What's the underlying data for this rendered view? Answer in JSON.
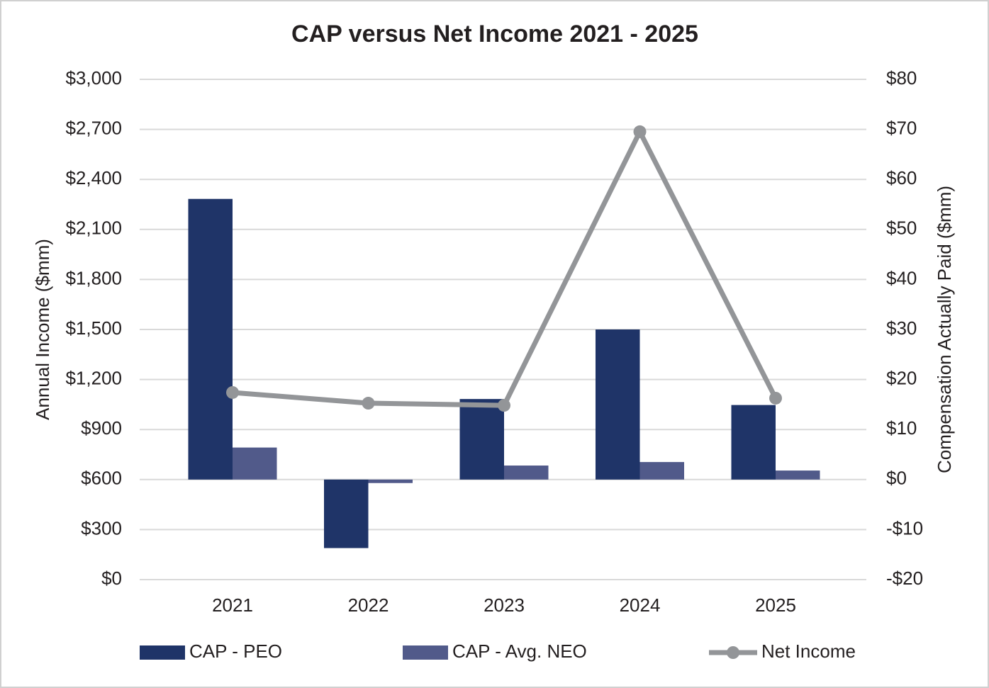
{
  "chart_data": {
    "type": "bar-line",
    "title": "CAP versus Net Income 2021 - 2025",
    "y_label": "Annual  Income ($mm)",
    "y2_label": "Compensation Actually Paid ($mm)",
    "categories": [
      "2021",
      "2022",
      "2023",
      "2024",
      "2025"
    ],
    "series": [
      {
        "name": "CAP - PEO",
        "type": "bar",
        "axis": "y2",
        "color": "#1f3468",
        "values": [
          56.1,
          -13.7,
          16.1,
          30.0,
          14.9
        ]
      },
      {
        "name": "CAP - Avg. NEO",
        "type": "bar",
        "axis": "y2",
        "color": "#515a8a",
        "values": [
          6.4,
          -0.7,
          2.8,
          3.5,
          1.8
        ]
      },
      {
        "name": "Net Income",
        "type": "line",
        "axis": "y",
        "color": "#939598",
        "values": [
          1122,
          1058,
          1045,
          2686,
          1088
        ]
      }
    ],
    "ylim": [
      0,
      3000
    ],
    "yticks": [
      {
        "value": 0,
        "label": "$0"
      },
      {
        "value": 300,
        "label": "$300"
      },
      {
        "value": 600,
        "label": "$600"
      },
      {
        "value": 900,
        "label": "$900"
      },
      {
        "value": 1200,
        "label": "$1,200"
      },
      {
        "value": 1500,
        "label": "$1,500"
      },
      {
        "value": 1800,
        "label": "$1,800"
      },
      {
        "value": 2100,
        "label": "$2,100"
      },
      {
        "value": 2400,
        "label": "$2,400"
      },
      {
        "value": 2700,
        "label": "$2,700"
      },
      {
        "value": 3000,
        "label": "$3,000"
      }
    ],
    "y2lim": [
      -20,
      80
    ],
    "y2ticks": [
      {
        "value": -20,
        "label": "-$20"
      },
      {
        "value": -10,
        "label": "-$10"
      },
      {
        "value": 0,
        "label": "$0"
      },
      {
        "value": 10,
        "label": "$10"
      },
      {
        "value": 20,
        "label": "$20"
      },
      {
        "value": 30,
        "label": "$30"
      },
      {
        "value": 40,
        "label": "$40"
      },
      {
        "value": 50,
        "label": "$50"
      },
      {
        "value": 60,
        "label": "$60"
      },
      {
        "value": 70,
        "label": "$70"
      },
      {
        "value": 80,
        "label": "$80"
      }
    ],
    "grid": true
  }
}
